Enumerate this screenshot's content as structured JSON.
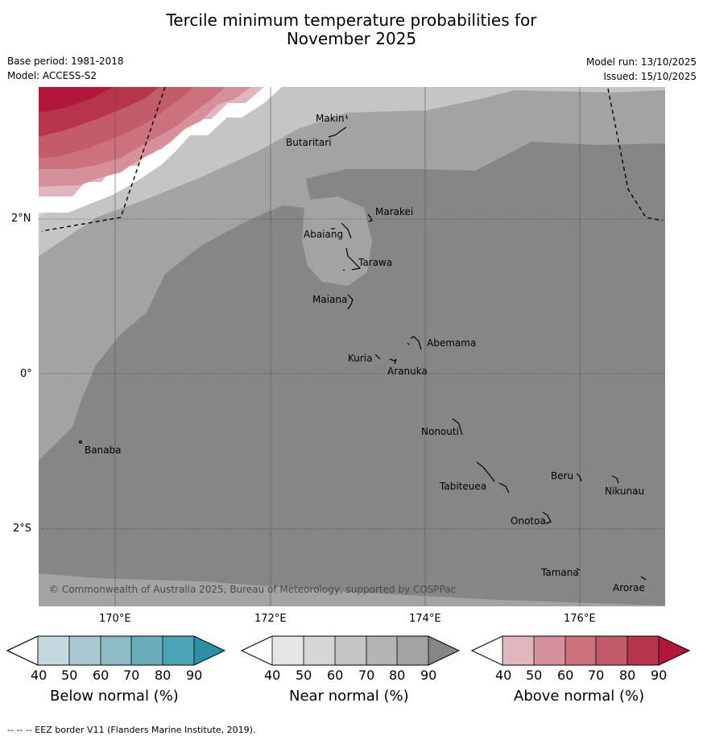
{
  "title_line1": "Tercile minimum temperature probabilities for",
  "title_line2": "November 2025",
  "meta": {
    "base_period": "Base period: 1981-2018",
    "model": "Model: ACCESS-S2",
    "model_run": "Model run: 13/10/2025",
    "issued": "Issued: 15/10/2025"
  },
  "axes": {
    "lat_labels": [
      "2°N",
      "0°",
      "2°S"
    ],
    "lon_labels": [
      "170°E",
      "172°E",
      "174°E",
      "176°E"
    ]
  },
  "places": [
    "Makin",
    "Butaritari",
    "Marakei",
    "Abaiang",
    "Tarawa",
    "Maiana",
    "Abemama",
    "Kuria",
    "Aranuka",
    "Banaba",
    "Nonouti",
    "Tabiteuea",
    "Beru",
    "Nikunau",
    "Onotoa",
    "Tamana",
    "Arorae"
  ],
  "copyright": "© Commonwealth of Australia 2025, Bureau of Meteorology, supported by COSPPac",
  "colorbars": {
    "ticks": [
      "40",
      "50",
      "60",
      "70",
      "80",
      "90"
    ],
    "below": {
      "label": "Below normal (%)",
      "colors": [
        "#ffffff",
        "#c2d9de",
        "#a8c8cf",
        "#8dbac5",
        "#6aacba",
        "#48a3b4",
        "#2d8fa3"
      ]
    },
    "near": {
      "label": "Near normal (%)",
      "colors": [
        "#ffffff",
        "#e6e6e6",
        "#d5d5d5",
        "#c5c5c5",
        "#b4b4b4",
        "#a3a3a3",
        "#868686"
      ]
    },
    "above": {
      "label": "Above normal (%)",
      "colors": [
        "#ffffff",
        "#e2b6bd",
        "#d6909a",
        "#cc717e",
        "#c45b6a",
        "#b7344a",
        "#b0173a"
      ]
    }
  },
  "footer": "-- -- -- EEZ border V11 (Flanders Marine Institute, 2019)."
}
